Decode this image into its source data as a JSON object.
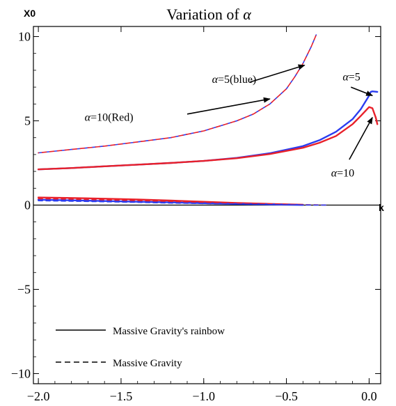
{
  "chart_data": {
    "type": "line",
    "title_prefix": "Variation of ",
    "title_symbol": "α",
    "xlabel": "k",
    "ylabel": "X0",
    "xlim": [
      -2.03,
      0.07
    ],
    "ylim": [
      -10.6,
      10.6
    ],
    "x_ticks": [
      -2.0,
      -1.5,
      -1.0,
      -0.5,
      0.0
    ],
    "x_tick_labels": [
      "−2.0",
      "−1.5",
      "−1.0",
      "−0.5",
      "0.0"
    ],
    "y_ticks": [
      -10,
      -5,
      0,
      5,
      10
    ],
    "y_tick_labels": [
      "−10",
      "−5",
      "0",
      "5",
      "10"
    ],
    "colors": {
      "blue": "#2a3cf0",
      "red": "#e8202a",
      "axis": "#000000"
    },
    "series": [
      {
        "color": "blue",
        "style": "dashed",
        "x": [
          -2.0,
          -1.8,
          -1.6,
          -1.4,
          -1.2,
          -1.0,
          -0.8,
          -0.7,
          -0.6,
          -0.5,
          -0.45,
          -0.4,
          -0.35,
          -0.32
        ],
        "y": [
          3.1,
          3.3,
          3.5,
          3.75,
          4.0,
          4.4,
          5.0,
          5.4,
          6.0,
          6.9,
          7.6,
          8.4,
          9.4,
          10.1
        ]
      },
      {
        "color": "red",
        "style": "dashed",
        "x": [
          -2.0,
          -1.8,
          -1.6,
          -1.4,
          -1.2,
          -1.0,
          -0.8,
          -0.7,
          -0.6,
          -0.5,
          -0.45,
          -0.4,
          -0.35,
          -0.32
        ],
        "y": [
          3.1,
          3.3,
          3.5,
          3.75,
          4.0,
          4.4,
          5.0,
          5.4,
          6.0,
          6.9,
          7.6,
          8.4,
          9.4,
          10.1
        ]
      },
      {
        "color": "blue",
        "style": "solid",
        "x": [
          -2.0,
          -1.8,
          -1.6,
          -1.4,
          -1.2,
          -1.0,
          -0.8,
          -0.6,
          -0.4,
          -0.3,
          -0.2,
          -0.1,
          -0.05,
          0.0,
          0.01,
          0.02,
          0.05
        ],
        "y": [
          2.12,
          2.2,
          2.3,
          2.4,
          2.5,
          2.62,
          2.8,
          3.08,
          3.5,
          3.85,
          4.35,
          5.1,
          5.7,
          6.5,
          6.72,
          6.75,
          6.72
        ]
      },
      {
        "color": "red",
        "style": "solid",
        "x": [
          -2.0,
          -1.8,
          -1.6,
          -1.4,
          -1.2,
          -1.0,
          -0.8,
          -0.6,
          -0.4,
          -0.3,
          -0.2,
          -0.1,
          -0.05,
          0.0,
          0.02,
          0.04,
          0.05
        ],
        "y": [
          2.12,
          2.2,
          2.3,
          2.4,
          2.5,
          2.62,
          2.78,
          3.03,
          3.4,
          3.7,
          4.1,
          4.8,
          5.3,
          5.82,
          5.75,
          5.2,
          4.8
        ]
      },
      {
        "color": "red",
        "style": "solid",
        "x": [
          -2.0,
          -1.8,
          -1.6,
          -1.4,
          -1.2,
          -1.0,
          -0.8,
          -0.6,
          -0.4
        ],
        "y": [
          0.45,
          0.42,
          0.38,
          0.33,
          0.27,
          0.2,
          0.13,
          0.07,
          0.02
        ]
      },
      {
        "color": "blue",
        "style": "solid",
        "x": [
          -2.0,
          -1.8,
          -1.6,
          -1.4,
          -1.2,
          -1.0,
          -0.8,
          -0.6,
          -0.4
        ],
        "y": [
          0.32,
          0.28,
          0.24,
          0.2,
          0.16,
          0.11,
          0.07,
          0.04,
          0.01
        ]
      },
      {
        "color": "red",
        "style": "dashed",
        "x": [
          -2.0,
          -1.8,
          -1.6,
          -1.4,
          -1.2,
          -1.0,
          -0.8,
          -0.6,
          -0.4,
          -0.25
        ],
        "y": [
          0.38,
          0.35,
          0.31,
          0.27,
          0.22,
          0.17,
          0.12,
          0.07,
          0.03,
          0.0
        ]
      },
      {
        "color": "blue",
        "style": "dashed",
        "x": [
          -2.0,
          -1.8,
          -1.6,
          -1.4,
          -1.2,
          -1.0,
          -0.8,
          -0.6,
          -0.4,
          -0.25
        ],
        "y": [
          0.26,
          0.23,
          0.2,
          0.16,
          0.12,
          0.09,
          0.06,
          0.03,
          0.01,
          0.0
        ]
      }
    ],
    "annotations": [
      {
        "label_prefix": "α",
        "label_rest": "=5(blue)",
        "text_at": [
          -0.95,
          7.25
        ],
        "arrow_from": [
          -0.72,
          7.3
        ],
        "arrow_to": [
          -0.39,
          8.3
        ]
      },
      {
        "label_prefix": "α",
        "label_rest": "=10(Red)",
        "text_at": [
          -1.72,
          5.0
        ],
        "arrow_from": [
          -1.1,
          5.4
        ],
        "arrow_to": [
          -0.6,
          6.3
        ]
      },
      {
        "label_prefix": "α",
        "label_rest": "=5",
        "text_at": [
          -0.16,
          7.4
        ],
        "arrow_from": [
          -0.11,
          7.0
        ],
        "arrow_to": [
          0.02,
          6.5
        ]
      },
      {
        "label_prefix": "α",
        "label_rest": "=10",
        "text_at": [
          -0.23,
          1.7
        ],
        "arrow_from": [
          -0.12,
          2.7
        ],
        "arrow_to": [
          0.02,
          5.2
        ]
      }
    ],
    "legend": [
      {
        "label": "Massive Gravity's rainbow",
        "style": "solid"
      },
      {
        "label": "Massive Gravity",
        "style": "dashed"
      }
    ]
  }
}
